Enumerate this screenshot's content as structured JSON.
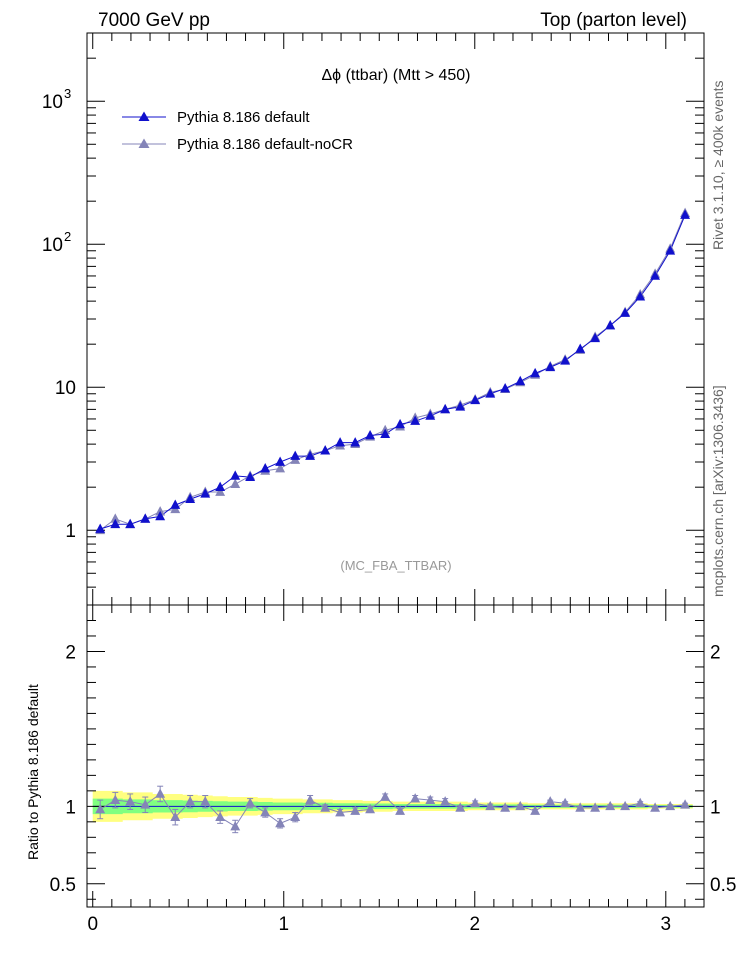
{
  "header": {
    "left": "7000 GeV pp",
    "right": "Top (parton level)"
  },
  "side_labels": {
    "rivet": "Rivet 3.1.10, ≥ 400k events",
    "mcplots": "mcplots.cern.ch [arXiv:1306.3436]"
  },
  "chart_data": {
    "type": "line",
    "title": "Δϕ (ttbar) (Mtt > 450)",
    "analysis_label": "(MC_FBA_TTBAR)",
    "xlim": [
      -0.03,
      3.2
    ],
    "x_ticks": [
      "0",
      "1",
      "2",
      "3"
    ],
    "main": {
      "yscale": "log",
      "ylim": [
        0.3,
        3000
      ],
      "y_ticks": [
        "1",
        "10",
        "10^2",
        "10^3"
      ],
      "legend_position": "top-left"
    },
    "ratio": {
      "ylabel": "Ratio to Pythia 8.186 default",
      "ylim": [
        0.35,
        2.3
      ],
      "y_ticks": [
        "0.5",
        "1",
        "2"
      ]
    },
    "colors": {
      "default": "#1010cc",
      "noCR": "#8484b8",
      "band_yellow": "#ffff80",
      "band_green": "#80ff80"
    },
    "x": [
      0.039,
      0.118,
      0.196,
      0.275,
      0.353,
      0.432,
      0.51,
      0.589,
      0.667,
      0.746,
      0.824,
      0.903,
      0.981,
      1.06,
      1.138,
      1.217,
      1.295,
      1.374,
      1.452,
      1.531,
      1.609,
      1.688,
      1.767,
      1.845,
      1.924,
      2.002,
      2.081,
      2.159,
      2.238,
      2.316,
      2.395,
      2.473,
      2.552,
      2.63,
      2.709,
      2.787,
      2.866,
      2.944,
      3.023,
      3.101
    ],
    "series": [
      {
        "name": "Pythia 8.186 default",
        "marker": "triangle",
        "values": [
          1.02,
          1.1,
          1.1,
          1.2,
          1.25,
          1.5,
          1.65,
          1.8,
          2.0,
          2.4,
          2.35,
          2.7,
          3.0,
          3.3,
          3.3,
          3.6,
          4.1,
          4.1,
          4.6,
          4.7,
          5.5,
          5.8,
          6.3,
          7.0,
          7.3,
          8.1,
          9.0,
          9.8,
          11.0,
          12.5,
          13.8,
          15.3,
          18.5,
          22.0,
          27.0,
          33.0,
          43.0,
          60.0,
          90.0,
          160.0
        ]
      },
      {
        "name": "Pythia 8.186 default-noCR",
        "marker": "triangle",
        "values": [
          1.0,
          1.2,
          1.1,
          1.2,
          1.35,
          1.4,
          1.7,
          1.85,
          1.85,
          2.1,
          2.4,
          2.6,
          2.7,
          3.1,
          3.4,
          3.6,
          3.9,
          4.0,
          4.5,
          5.0,
          5.3,
          6.1,
          6.5,
          7.0,
          7.5,
          8.2,
          9.2,
          9.7,
          10.8,
          12.2,
          14.0,
          15.6,
          18.2,
          22.5,
          27.0,
          33.5,
          44.5,
          62.0,
          93.0,
          165.0
        ]
      }
    ],
    "ratio_series": {
      "name": "Pythia 8.186 default-noCR",
      "values": [
        0.98,
        1.04,
        1.03,
        1.01,
        1.08,
        0.93,
        1.03,
        1.03,
        0.93,
        0.87,
        1.02,
        0.96,
        0.89,
        0.93,
        1.04,
        0.99,
        0.96,
        0.97,
        0.98,
        1.06,
        0.97,
        1.05,
        1.04,
        1.03,
        0.99,
        1.02,
        1.0,
        0.99,
        1.0,
        0.97,
        1.03,
        1.02,
        0.99,
        0.99,
        1.0,
        1.0,
        1.02,
        0.99,
        1.0,
        1.01
      ],
      "errors": [
        0.06,
        0.05,
        0.05,
        0.05,
        0.05,
        0.05,
        0.04,
        0.04,
        0.04,
        0.04,
        0.03,
        0.03,
        0.03,
        0.03,
        0.03,
        0.02,
        0.02,
        0.02,
        0.02,
        0.02,
        0.02,
        0.02,
        0.02,
        0.02,
        0.015,
        0.015,
        0.015,
        0.015,
        0.01,
        0.01,
        0.01,
        0.01,
        0.01,
        0.01,
        0.01,
        0.01,
        0.01,
        0.01,
        0.01,
        0.01
      ],
      "band_yellow_halfwidth": [
        0.1,
        0.1,
        0.09,
        0.09,
        0.08,
        0.08,
        0.075,
        0.07,
        0.065,
        0.06,
        0.06,
        0.055,
        0.05,
        0.05,
        0.045,
        0.045,
        0.04,
        0.04,
        0.035,
        0.035,
        0.03,
        0.03,
        0.03,
        0.03,
        0.03,
        0.025,
        0.025,
        0.025,
        0.025,
        0.02,
        0.02,
        0.02,
        0.02,
        0.02,
        0.02,
        0.02,
        0.02,
        0.015,
        0.015,
        0.015
      ],
      "band_green_halfwidth": [
        0.05,
        0.05,
        0.045,
        0.045,
        0.04,
        0.04,
        0.038,
        0.035,
        0.033,
        0.03,
        0.03,
        0.028,
        0.025,
        0.025,
        0.023,
        0.023,
        0.02,
        0.02,
        0.018,
        0.018,
        0.015,
        0.015,
        0.015,
        0.015,
        0.015,
        0.013,
        0.013,
        0.013,
        0.013,
        0.01,
        0.01,
        0.01,
        0.01,
        0.01,
        0.01,
        0.01,
        0.01,
        0.008,
        0.008,
        0.008
      ]
    }
  }
}
